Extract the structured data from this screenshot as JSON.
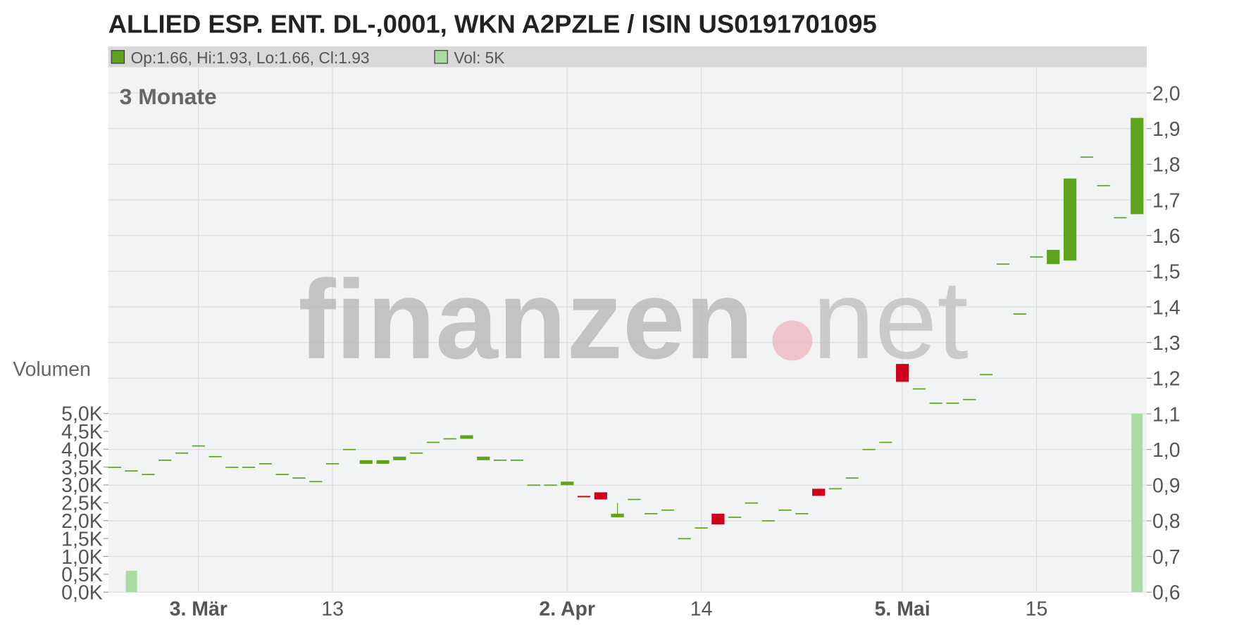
{
  "chart_data": {
    "type": "candlestick",
    "title": "ALLIED ESP. ENT. DL-,0001, WKN A2PZLE / ISIN US0191701095",
    "legend_price": "Op:1.66, Hi:1.93, Lo:1.66, Cl:1.93",
    "legend_volume": "Vol: 5K",
    "period_label": "3 Monate",
    "volume_label": "Volumen",
    "watermark": [
      "finanzen",
      "net"
    ],
    "categories": [
      null,
      null,
      null,
      null,
      null,
      "3. Mär",
      null,
      null,
      null,
      null,
      null,
      null,
      null,
      "13",
      null,
      null,
      null,
      null,
      null,
      null,
      null,
      null,
      null,
      null,
      null,
      null,
      null,
      "2. Apr",
      null,
      null,
      null,
      null,
      null,
      null,
      null,
      "14",
      null,
      null,
      null,
      null,
      null,
      null,
      null,
      null,
      null,
      null,
      null,
      "5. Mai",
      null,
      null,
      null,
      null,
      null,
      null,
      null,
      "15",
      null,
      null,
      null,
      null,
      null,
      null
    ],
    "open": [
      0.95,
      0.94,
      0.93,
      0.97,
      0.99,
      1.01,
      0.98,
      0.95,
      0.95,
      0.96,
      0.93,
      0.92,
      0.91,
      0.96,
      1.0,
      0.96,
      0.96,
      0.97,
      0.99,
      1.02,
      1.03,
      1.03,
      0.97,
      0.97,
      0.97,
      0.9,
      0.9,
      0.9,
      0.87,
      0.88,
      0.81,
      0.86,
      0.82,
      0.83,
      0.75,
      0.78,
      0.82,
      0.81,
      0.85,
      0.8,
      0.83,
      0.82,
      0.89,
      0.89,
      0.92,
      1.0,
      1.02,
      1.24,
      1.17,
      1.13,
      1.13,
      1.14,
      1.21,
      1.52,
      1.38,
      1.54,
      1.52,
      1.53,
      1.82,
      1.74,
      1.65,
      1.66
    ],
    "high": [
      0.95,
      0.94,
      0.93,
      0.97,
      0.99,
      1.01,
      0.98,
      0.95,
      0.95,
      0.96,
      0.93,
      0.92,
      0.91,
      0.96,
      1.0,
      0.97,
      0.97,
      0.98,
      0.99,
      1.02,
      1.03,
      1.04,
      0.98,
      0.97,
      0.97,
      0.9,
      0.9,
      0.91,
      0.87,
      0.88,
      0.85,
      0.86,
      0.82,
      0.83,
      0.75,
      0.78,
      0.82,
      0.81,
      0.85,
      0.8,
      0.83,
      0.82,
      0.89,
      0.89,
      0.92,
      1.0,
      1.02,
      1.24,
      1.17,
      1.13,
      1.13,
      1.14,
      1.21,
      1.52,
      1.38,
      1.54,
      1.56,
      1.76,
      1.82,
      1.74,
      1.65,
      1.93
    ],
    "low": [
      0.95,
      0.94,
      0.93,
      0.97,
      0.99,
      1.01,
      0.98,
      0.95,
      0.95,
      0.96,
      0.93,
      0.92,
      0.91,
      0.96,
      1.0,
      0.96,
      0.96,
      0.97,
      0.99,
      1.02,
      1.03,
      1.03,
      0.97,
      0.97,
      0.97,
      0.9,
      0.9,
      0.9,
      0.866,
      0.86,
      0.81,
      0.86,
      0.82,
      0.83,
      0.75,
      0.78,
      0.79,
      0.81,
      0.85,
      0.8,
      0.83,
      0.82,
      0.87,
      0.89,
      0.92,
      1.0,
      1.02,
      1.19,
      1.17,
      1.13,
      1.13,
      1.14,
      1.21,
      1.52,
      1.38,
      1.54,
      1.52,
      1.53,
      1.82,
      1.74,
      1.65,
      1.66
    ],
    "close": [
      0.95,
      0.94,
      0.93,
      0.97,
      0.99,
      1.01,
      0.98,
      0.95,
      0.95,
      0.96,
      0.93,
      0.92,
      0.91,
      0.96,
      1.0,
      0.97,
      0.97,
      0.98,
      0.99,
      1.02,
      1.03,
      1.04,
      0.98,
      0.97,
      0.97,
      0.9,
      0.9,
      0.91,
      0.866,
      0.86,
      0.82,
      0.86,
      0.82,
      0.83,
      0.75,
      0.78,
      0.79,
      0.81,
      0.85,
      0.8,
      0.83,
      0.82,
      0.87,
      0.89,
      0.92,
      1.0,
      1.02,
      1.19,
      1.17,
      1.13,
      1.13,
      1.14,
      1.21,
      1.52,
      1.38,
      1.54,
      1.56,
      1.76,
      1.82,
      1.74,
      1.65,
      1.93
    ],
    "volume": [
      0,
      0.6,
      0,
      0,
      0,
      0,
      0,
      0,
      0,
      0,
      0,
      0,
      0,
      0,
      0,
      0,
      0,
      0,
      0,
      0,
      0,
      0,
      0,
      0,
      0,
      0,
      0,
      0,
      0,
      0,
      0,
      0,
      0,
      0,
      0,
      0,
      0,
      0,
      0,
      0,
      0,
      0,
      0,
      0,
      0,
      0,
      0,
      0,
      0,
      0,
      0,
      0,
      0,
      0,
      0,
      0,
      0,
      0,
      0,
      0,
      0,
      5.0
    ],
    "up_color": "#5ea41c",
    "down_color": "#d0021b",
    "volume_up_color": "#a9dba3",
    "volume_down_color": "#f2a7b3",
    "ylim": [
      0.6,
      2.0
    ],
    "yticks": [
      {
        "value": 0.6,
        "label": "0,6"
      },
      {
        "value": 0.7,
        "label": "0,7"
      },
      {
        "value": 0.8,
        "label": "0,8"
      },
      {
        "value": 0.9,
        "label": "0,9"
      },
      {
        "value": 1.0,
        "label": "1,0"
      },
      {
        "value": 1.1,
        "label": "1,1"
      },
      {
        "value": 1.2,
        "label": "1,2"
      },
      {
        "value": 1.3,
        "label": "1,3"
      },
      {
        "value": 1.4,
        "label": "1,4"
      },
      {
        "value": 1.5,
        "label": "1,5"
      },
      {
        "value": 1.6,
        "label": "1,6"
      },
      {
        "value": 1.7,
        "label": "1,7"
      },
      {
        "value": 1.8,
        "label": "1,8"
      },
      {
        "value": 1.9,
        "label": "1,9"
      },
      {
        "value": 2.0,
        "label": "2,0"
      }
    ],
    "y2lim": [
      0,
      5
    ],
    "y2ticks": [
      {
        "value": 0,
        "label": "0,0K"
      },
      {
        "value": 0.5,
        "label": "0,5K"
      },
      {
        "value": 1,
        "label": "1,0K"
      },
      {
        "value": 1.5,
        "label": "1,5K"
      },
      {
        "value": 2,
        "label": "2,0K"
      },
      {
        "value": 2.5,
        "label": "2,5K"
      },
      {
        "value": 3,
        "label": "3,0K"
      },
      {
        "value": 3.5,
        "label": "3,5K"
      },
      {
        "value": 4,
        "label": "4,0K"
      },
      {
        "value": 4.5,
        "label": "4,5K"
      },
      {
        "value": 5,
        "label": "5,0K"
      }
    ],
    "grid": true
  }
}
